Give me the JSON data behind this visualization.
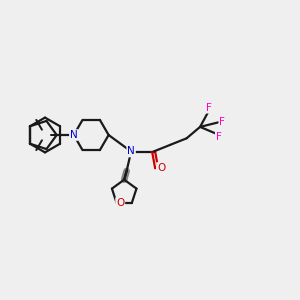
{
  "background_color": "#efefef",
  "bond_color": "#1a1a1a",
  "N_color": "#0000cc",
  "O_color": "#cc0000",
  "F_color": "#ff00cc",
  "line_width": 1.6,
  "fig_size": [
    3.0,
    3.0
  ],
  "dpi": 100,
  "xlim": [
    0,
    10
  ],
  "ylim": [
    0,
    10
  ]
}
